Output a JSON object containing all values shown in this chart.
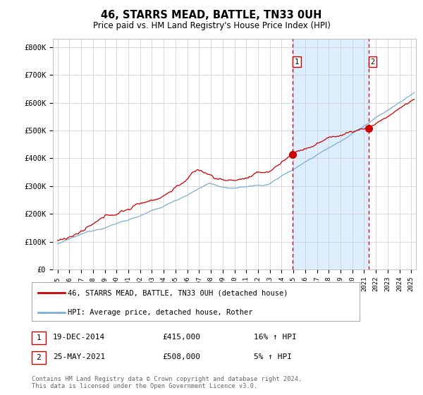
{
  "title": "46, STARRS MEAD, BATTLE, TN33 0UH",
  "subtitle": "Price paid vs. HM Land Registry's House Price Index (HPI)",
  "ylim": [
    0,
    830000
  ],
  "yticks": [
    0,
    100000,
    200000,
    300000,
    400000,
    500000,
    600000,
    700000,
    800000
  ],
  "ytick_labels": [
    "£0",
    "£100K",
    "£200K",
    "£300K",
    "£400K",
    "£500K",
    "£600K",
    "£700K",
    "£800K"
  ],
  "red_line_color": "#cc0000",
  "blue_line_color": "#7aaed6",
  "shaded_region_color": "#ddeeff",
  "marker1_year": 2014.96,
  "marker1_value": 415000,
  "marker1_label": "1",
  "marker1_date_str": "19-DEC-2014",
  "marker1_price_str": "£415,000",
  "marker1_hpi_str": "16% ↑ HPI",
  "marker2_year": 2021.38,
  "marker2_value": 508000,
  "marker2_label": "2",
  "marker2_date_str": "25-MAY-2021",
  "marker2_price_str": "£508,000",
  "marker2_hpi_str": "5% ↑ HPI",
  "legend_label1": "46, STARRS MEAD, BATTLE, TN33 0UH (detached house)",
  "legend_label2": "HPI: Average price, detached house, Rother",
  "footer_text": "Contains HM Land Registry data © Crown copyright and database right 2024.\nThis data is licensed under the Open Government Licence v3.0.",
  "start_year": 1995,
  "end_year": 2025,
  "n_months": 364
}
